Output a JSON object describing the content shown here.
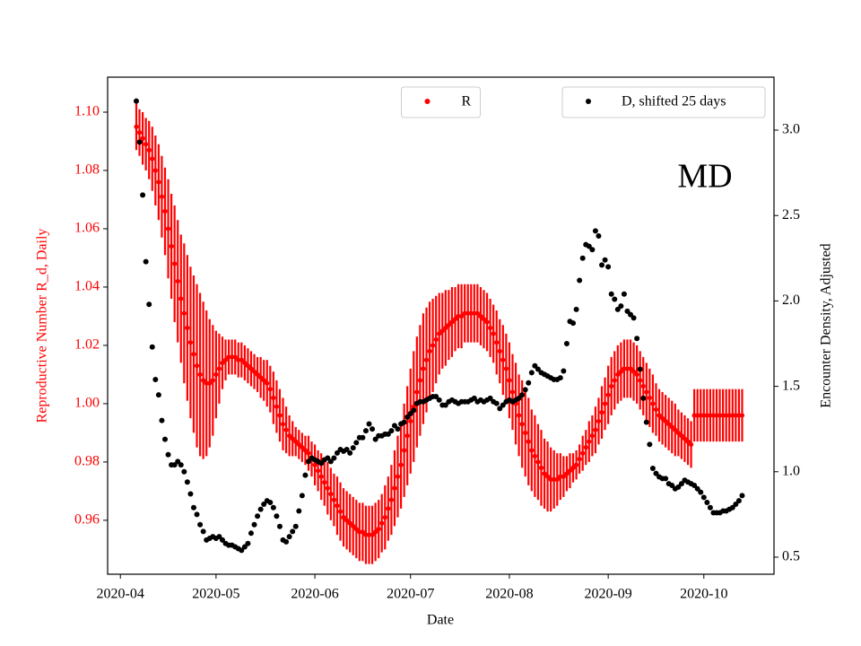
{
  "chart_data": {
    "type": "errorbar_scatter",
    "annotation": "MD",
    "xlabel": "Date",
    "ylabel": "Reproductive Number R_d, Daily",
    "y2label": "Encounter Density, Adjusted",
    "y_axis_color": "#ff0000",
    "xlim": [
      "2020-03-28",
      "2020-10-23"
    ],
    "xticks": [
      "2020-04",
      "2020-05",
      "2020-06",
      "2020-07",
      "2020-08",
      "2020-09",
      "2020-10"
    ],
    "ylim": [
      0.9415,
      1.112
    ],
    "yticks": [
      0.96,
      0.98,
      {
        "value": 1,
        "label": "1.00"
      },
      1.02,
      1.04,
      1.06,
      1.08,
      {
        "value": 1.1,
        "label": "1.10"
      }
    ],
    "y2lim": [
      0.4,
      3.31
    ],
    "y2ticks": [
      0.5,
      {
        "value": 1,
        "label": "1.0"
      },
      1.5,
      {
        "value": 2,
        "label": "2.0"
      },
      2.5,
      {
        "value": 3,
        "label": "3.0"
      }
    ],
    "x": [
      "2020-04-06",
      "2020-04-07",
      "2020-04-08",
      "2020-04-09",
      "2020-04-10",
      "2020-04-11",
      "2020-04-12",
      "2020-04-13",
      "2020-04-14",
      "2020-04-15",
      "2020-04-16",
      "2020-04-17",
      "2020-04-18",
      "2020-04-19",
      "2020-04-20",
      "2020-04-21",
      "2020-04-22",
      "2020-04-23",
      "2020-04-24",
      "2020-04-25",
      "2020-04-26",
      "2020-04-27",
      "2020-04-28",
      "2020-04-29",
      "2020-04-30",
      "2020-05-01",
      "2020-05-02",
      "2020-05-03",
      "2020-05-04",
      "2020-05-05",
      "2020-05-06",
      "2020-05-07",
      "2020-05-08",
      "2020-05-09",
      "2020-05-10",
      "2020-05-11",
      "2020-05-12",
      "2020-05-13",
      "2020-05-14",
      "2020-05-15",
      "2020-05-16",
      "2020-05-17",
      "2020-05-18",
      "2020-05-19",
      "2020-05-20",
      "2020-05-21",
      "2020-05-22",
      "2020-05-23",
      "2020-05-24",
      "2020-05-25",
      "2020-05-26",
      "2020-05-27",
      "2020-05-28",
      "2020-05-29",
      "2020-05-30",
      "2020-05-31",
      "2020-06-01",
      "2020-06-02",
      "2020-06-03",
      "2020-06-04",
      "2020-06-05",
      "2020-06-06",
      "2020-06-07",
      "2020-06-08",
      "2020-06-09",
      "2020-06-10",
      "2020-06-11",
      "2020-06-12",
      "2020-06-13",
      "2020-06-14",
      "2020-06-15",
      "2020-06-16",
      "2020-06-17",
      "2020-06-18",
      "2020-06-19",
      "2020-06-20",
      "2020-06-21",
      "2020-06-22",
      "2020-06-23",
      "2020-06-24",
      "2020-06-25",
      "2020-06-26",
      "2020-06-27",
      "2020-06-28",
      "2020-06-29",
      "2020-06-30",
      "2020-07-01",
      "2020-07-02",
      "2020-07-03",
      "2020-07-04",
      "2020-07-05",
      "2020-07-06",
      "2020-07-07",
      "2020-07-08",
      "2020-07-09",
      "2020-07-10",
      "2020-07-11",
      "2020-07-12",
      "2020-07-13",
      "2020-07-14",
      "2020-07-15",
      "2020-07-16",
      "2020-07-17",
      "2020-07-18",
      "2020-07-19",
      "2020-07-20",
      "2020-07-21",
      "2020-07-22",
      "2020-07-23",
      "2020-07-24",
      "2020-07-25",
      "2020-07-26",
      "2020-07-27",
      "2020-07-28",
      "2020-07-29",
      "2020-07-30",
      "2020-07-31",
      "2020-08-01",
      "2020-08-02",
      "2020-08-03",
      "2020-08-04",
      "2020-08-05",
      "2020-08-06",
      "2020-08-07",
      "2020-08-08",
      "2020-08-09",
      "2020-08-10",
      "2020-08-11",
      "2020-08-12",
      "2020-08-13",
      "2020-08-14",
      "2020-08-15",
      "2020-08-16",
      "2020-08-17",
      "2020-08-18",
      "2020-08-19",
      "2020-08-20",
      "2020-08-21",
      "2020-08-22",
      "2020-08-23",
      "2020-08-24",
      "2020-08-25",
      "2020-08-26",
      "2020-08-27",
      "2020-08-28",
      "2020-08-29",
      "2020-08-30",
      "2020-08-31",
      "2020-09-01",
      "2020-09-02",
      "2020-09-03",
      "2020-09-04",
      "2020-09-05",
      "2020-09-06",
      "2020-09-07",
      "2020-09-08",
      "2020-09-09",
      "2020-09-10",
      "2020-09-11",
      "2020-09-12",
      "2020-09-13",
      "2020-09-14",
      "2020-09-15",
      "2020-09-16",
      "2020-09-17",
      "2020-09-18",
      "2020-09-19",
      "2020-09-20",
      "2020-09-21",
      "2020-09-22",
      "2020-09-23",
      "2020-09-24",
      "2020-09-25",
      "2020-09-26",
      "2020-09-27",
      "2020-09-28",
      "2020-09-29",
      "2020-09-30",
      "2020-10-01",
      "2020-10-02",
      "2020-10-03",
      "2020-10-04",
      "2020-10-05",
      "2020-10-06",
      "2020-10-07",
      "2020-10-08",
      "2020-10-09",
      "2020-10-10",
      "2020-10-11",
      "2020-10-12",
      "2020-10-13"
    ],
    "series": [
      {
        "name": "R",
        "color": "#ff0000",
        "legend": "upper center",
        "values": [
          1.095,
          1.093,
          1.091,
          1.089,
          1.087,
          1.084,
          1.08,
          1.076,
          1.071,
          1.066,
          1.06,
          1.054,
          1.048,
          1.042,
          1.036,
          1.031,
          1.026,
          1.021,
          1.017,
          1.013,
          1.01,
          1.008,
          1.007,
          1.007,
          1.008,
          1.01,
          1.012,
          1.014,
          1.015,
          1.016,
          1.016,
          1.016,
          1.015,
          1.015,
          1.014,
          1.013,
          1.012,
          1.011,
          1.01,
          1.009,
          1.008,
          1.007,
          1.005,
          1.002,
          0.999,
          0.996,
          0.993,
          0.991,
          0.989,
          0.988,
          0.987,
          0.986,
          0.985,
          0.984,
          0.983,
          0.981,
          0.979,
          0.977,
          0.975,
          0.973,
          0.971,
          0.969,
          0.967,
          0.965,
          0.963,
          0.961,
          0.96,
          0.959,
          0.958,
          0.957,
          0.956,
          0.956,
          0.955,
          0.955,
          0.955,
          0.956,
          0.957,
          0.959,
          0.961,
          0.964,
          0.967,
          0.971,
          0.975,
          0.979,
          0.984,
          0.989,
          0.994,
          0.999,
          1.004,
          1.008,
          1.012,
          1.015,
          1.018,
          1.02,
          1.022,
          1.024,
          1.025,
          1.026,
          1.027,
          1.028,
          1.029,
          1.03,
          1.03,
          1.031,
          1.031,
          1.031,
          1.031,
          1.031,
          1.03,
          1.029,
          1.028,
          1.026,
          1.024,
          1.021,
          1.018,
          1.015,
          1.012,
          1.008,
          1.004,
          1.0,
          0.996,
          0.993,
          0.99,
          0.987,
          0.984,
          0.982,
          0.98,
          0.978,
          0.976,
          0.975,
          0.974,
          0.974,
          0.974,
          0.975,
          0.975,
          0.976,
          0.977,
          0.978,
          0.979,
          0.981,
          0.983,
          0.985,
          0.987,
          0.989,
          0.991,
          0.994,
          0.997,
          1.0,
          1.003,
          1.006,
          1.008,
          1.01,
          1.011,
          1.012,
          1.012,
          1.012,
          1.011,
          1.01,
          1.008,
          1.006,
          1.004,
          1.002,
          1.0,
          0.998,
          0.996,
          0.995,
          0.994,
          0.993,
          0.992,
          0.991,
          0.99,
          0.989,
          0.988,
          0.987,
          0.986,
          0.996,
          0.996,
          0.996,
          0.996,
          0.996,
          0.996,
          0.996,
          0.996,
          0.996,
          0.996,
          0.996,
          0.996,
          0.996,
          0.996,
          0.996,
          0.996
        ],
        "errors": [
          0.008,
          0.008,
          0.009,
          0.009,
          0.01,
          0.011,
          0.012,
          0.013,
          0.014,
          0.015,
          0.017,
          0.018,
          0.02,
          0.021,
          0.022,
          0.024,
          0.025,
          0.026,
          0.027,
          0.028,
          0.028,
          0.027,
          0.025,
          0.022,
          0.019,
          0.015,
          0.012,
          0.009,
          0.007,
          0.006,
          0.006,
          0.006,
          0.006,
          0.006,
          0.006,
          0.006,
          0.006,
          0.006,
          0.006,
          0.007,
          0.007,
          0.008,
          0.008,
          0.009,
          0.009,
          0.009,
          0.009,
          0.008,
          0.007,
          0.006,
          0.005,
          0.005,
          0.005,
          0.005,
          0.006,
          0.006,
          0.007,
          0.007,
          0.008,
          0.008,
          0.009,
          0.009,
          0.009,
          0.01,
          0.01,
          0.01,
          0.01,
          0.01,
          0.01,
          0.01,
          0.01,
          0.01,
          0.01,
          0.01,
          0.01,
          0.01,
          0.01,
          0.01,
          0.011,
          0.011,
          0.012,
          0.013,
          0.014,
          0.015,
          0.016,
          0.017,
          0.018,
          0.019,
          0.019,
          0.019,
          0.019,
          0.018,
          0.017,
          0.016,
          0.015,
          0.014,
          0.013,
          0.013,
          0.012,
          0.012,
          0.011,
          0.011,
          0.011,
          0.01,
          0.01,
          0.01,
          0.01,
          0.01,
          0.01,
          0.01,
          0.01,
          0.01,
          0.01,
          0.011,
          0.011,
          0.012,
          0.012,
          0.013,
          0.013,
          0.014,
          0.014,
          0.015,
          0.015,
          0.015,
          0.014,
          0.014,
          0.013,
          0.013,
          0.012,
          0.012,
          0.011,
          0.01,
          0.009,
          0.008,
          0.007,
          0.006,
          0.006,
          0.005,
          0.005,
          0.005,
          0.006,
          0.006,
          0.007,
          0.007,
          0.008,
          0.008,
          0.009,
          0.009,
          0.01,
          0.01,
          0.01,
          0.01,
          0.01,
          0.01,
          0.01,
          0.01,
          0.01,
          0.01,
          0.01,
          0.01,
          0.01,
          0.01,
          0.01,
          0.009,
          0.009,
          0.009,
          0.009,
          0.009,
          0.009,
          0.009,
          0.008,
          0.008,
          0.008,
          0.008,
          0.008,
          0.009,
          0.009,
          0.009,
          0.009,
          0.009,
          0.009,
          0.009,
          0.009,
          0.009,
          0.009,
          0.009,
          0.009,
          0.009,
          0.009,
          0.009,
          0.009
        ]
      },
      {
        "name": "D, shifted 25 days",
        "color": "#000000",
        "axis": "y2",
        "legend": "upper right",
        "values": [
          3.17,
          2.93,
          2.62,
          2.23,
          1.98,
          1.73,
          1.54,
          1.45,
          1.3,
          1.19,
          1.1,
          1.04,
          1.04,
          1.06,
          1.04,
          1.0,
          0.94,
          0.87,
          0.79,
          0.75,
          0.69,
          0.65,
          0.6,
          0.61,
          0.62,
          0.61,
          0.62,
          0.6,
          0.58,
          0.57,
          0.57,
          0.56,
          0.55,
          0.54,
          0.56,
          0.58,
          0.64,
          0.69,
          0.74,
          0.78,
          0.81,
          0.83,
          0.82,
          0.79,
          0.74,
          0.68,
          0.6,
          0.59,
          0.62,
          0.65,
          0.68,
          0.77,
          0.86,
          0.98,
          1.06,
          1.08,
          1.07,
          1.06,
          1.05,
          1.07,
          1.08,
          1.06,
          1.08,
          1.11,
          1.13,
          1.12,
          1.13,
          1.11,
          1.14,
          1.17,
          1.2,
          1.2,
          1.24,
          1.28,
          1.25,
          1.19,
          1.21,
          1.21,
          1.22,
          1.22,
          1.24,
          1.27,
          1.25,
          1.28,
          1.29,
          1.32,
          1.34,
          1.36,
          1.4,
          1.41,
          1.41,
          1.42,
          1.43,
          1.44,
          1.44,
          1.42,
          1.39,
          1.39,
          1.41,
          1.42,
          1.41,
          1.4,
          1.41,
          1.41,
          1.41,
          1.42,
          1.43,
          1.41,
          1.42,
          1.41,
          1.42,
          1.43,
          1.41,
          1.4,
          1.37,
          1.39,
          1.41,
          1.42,
          1.41,
          1.42,
          1.43,
          1.45,
          1.48,
          1.52,
          1.58,
          1.62,
          1.6,
          1.58,
          1.57,
          1.56,
          1.55,
          1.54,
          1.54,
          1.55,
          1.59,
          1.75,
          1.88,
          1.87,
          1.95,
          2.12,
          2.25,
          2.33,
          2.32,
          2.3,
          2.41,
          2.38,
          2.21,
          2.24,
          2.2,
          2.04,
          2.01,
          1.95,
          1.97,
          2.04,
          1.94,
          1.92,
          1.9,
          1.78,
          1.6,
          1.43,
          1.29,
          1.16,
          1.02,
          0.99,
          0.97,
          0.96,
          0.96,
          0.93,
          0.92,
          0.9,
          0.91,
          0.93,
          0.95,
          0.94,
          0.93,
          0.92,
          0.9,
          0.88,
          0.85,
          0.82,
          0.79,
          0.76,
          0.76,
          0.76,
          0.77,
          0.77,
          0.78,
          0.79,
          0.81,
          0.83,
          0.86
        ]
      }
    ]
  }
}
